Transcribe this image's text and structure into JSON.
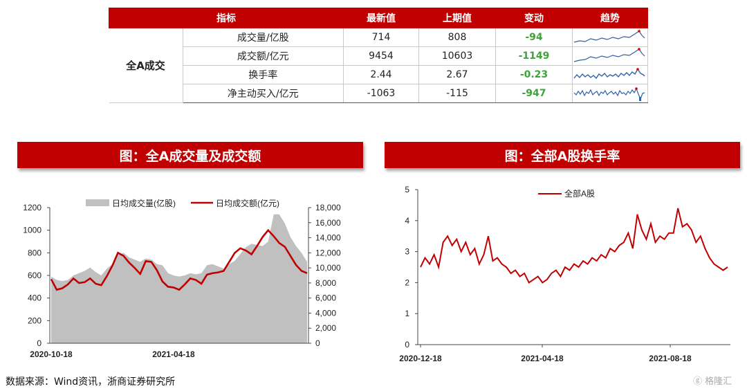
{
  "summary": {
    "headers": [
      "指标",
      "最新值",
      "上期值",
      "变动",
      "趋势"
    ],
    "group_label": "全A成交",
    "rows": [
      {
        "name": "成交量/亿股",
        "latest": "714",
        "previous": "808",
        "change": "-94"
      },
      {
        "name": "成交额/亿元",
        "latest": "9454",
        "previous": "10603",
        "change": "-1149"
      },
      {
        "name": "换手率",
        "latest": "2.44",
        "previous": "2.67",
        "change": "-0.23"
      },
      {
        "name": "净主动买入/亿元",
        "latest": "-1063",
        "previous": "-115",
        "change": "-947"
      }
    ],
    "change_color": "#3fa33a",
    "header_color": "#c00000"
  },
  "banners": {
    "left": "图：全A成交量及成交额",
    "right": "图：全部A股换手率"
  },
  "source": "数据来源：Wind资讯，浙商证券研究所",
  "watermark": "格隆汇",
  "chart_data": [
    {
      "type": "area",
      "title": "",
      "legend_position": "top",
      "x_tick_labels": [
        "2020-10-18",
        "2021-04-18"
      ],
      "series": [
        {
          "name": "日均成交量(亿股)",
          "type": "area",
          "axis": "left",
          "color": "#c0c0c0",
          "values": [
            590,
            560,
            550,
            560,
            600,
            620,
            640,
            670,
            630,
            600,
            660,
            700,
            780,
            800,
            760,
            740,
            720,
            750,
            740,
            700,
            690,
            620,
            600,
            590,
            600,
            620,
            610,
            620,
            690,
            700,
            680,
            660,
            700,
            730,
            790,
            850,
            880,
            870,
            860,
            900,
            1140,
            1140,
            1060,
            940,
            860,
            800,
            720
          ]
        },
        {
          "name": "日均成交额(亿元)",
          "type": "line",
          "axis": "right",
          "color": "#c00000",
          "values": [
            8500,
            7100,
            7300,
            7800,
            8600,
            8000,
            8100,
            8600,
            7900,
            7700,
            8900,
            10300,
            12000,
            11600,
            10700,
            10000,
            9200,
            10900,
            10800,
            9700,
            8200,
            7500,
            7400,
            7100,
            7800,
            8600,
            8400,
            7900,
            9100,
            9300,
            9400,
            9600,
            10800,
            12000,
            12600,
            12300,
            11800,
            12900,
            14100,
            15000,
            14200,
            13300,
            12800,
            11600,
            10400,
            9600,
            9300
          ]
        }
      ],
      "y_left": {
        "min": 0,
        "max": 1200,
        "ticks": [
          0,
          200,
          400,
          600,
          800,
          1000,
          1200
        ]
      },
      "y_right": {
        "min": 0,
        "max": 18000,
        "ticks": [
          "0",
          "2,000",
          "4,000",
          "6,000",
          "8,000",
          "10,000",
          "12,000",
          "14,000",
          "16,000",
          "18,000"
        ]
      }
    },
    {
      "type": "line",
      "title": "",
      "legend_position": "top-center",
      "x_tick_labels": [
        "2020-12-18",
        "2021-04-18",
        "2021-08-18"
      ],
      "series": [
        {
          "name": "全部A股",
          "color": "#c00000",
          "values": [
            2.5,
            2.8,
            2.6,
            2.9,
            2.5,
            3.3,
            3.5,
            3.2,
            3.4,
            3.0,
            3.3,
            2.9,
            3.1,
            2.6,
            2.9,
            3.5,
            2.7,
            2.8,
            2.6,
            2.5,
            2.3,
            2.4,
            2.2,
            2.3,
            2.0,
            2.1,
            2.2,
            2.0,
            2.1,
            2.3,
            2.4,
            2.2,
            2.5,
            2.4,
            2.6,
            2.5,
            2.7,
            2.6,
            2.8,
            2.7,
            2.9,
            2.8,
            3.1,
            3.0,
            3.2,
            3.3,
            3.6,
            3.1,
            4.2,
            3.7,
            3.4,
            3.9,
            3.3,
            3.5,
            3.4,
            3.6,
            3.6,
            4.4,
            3.8,
            3.9,
            3.7,
            3.3,
            3.5,
            3.1,
            2.8,
            2.6,
            2.5,
            2.4,
            2.5
          ]
        }
      ],
      "y": {
        "min": 0,
        "max": 5,
        "ticks": [
          0,
          1,
          2,
          3,
          4,
          5
        ]
      }
    }
  ]
}
